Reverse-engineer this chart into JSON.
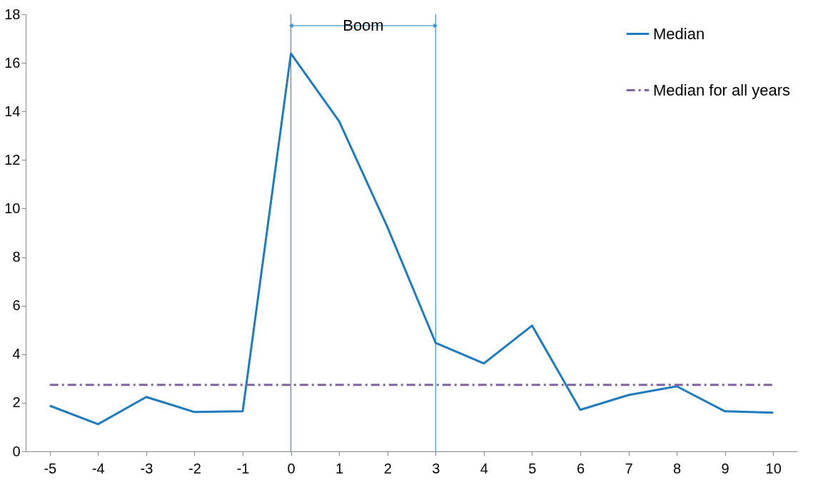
{
  "chart_data": {
    "type": "line",
    "categories": [
      "-5",
      "-4",
      "-3",
      "-2",
      "-1",
      "0",
      "1",
      "2",
      "3",
      "4",
      "5",
      "6",
      "7",
      "8",
      "9",
      "10"
    ],
    "series": [
      {
        "name": "Median",
        "color": "#1f7bbf",
        "values": [
          1.88,
          1.12,
          2.24,
          1.62,
          1.65,
          16.38,
          13.59,
          9.24,
          4.47,
          3.62,
          5.18,
          1.71,
          2.32,
          2.68,
          1.65,
          1.59
        ]
      },
      {
        "name": "Median for all years",
        "color": "#8064a2",
        "line_style": "dashed",
        "values": [
          2.74,
          2.74,
          2.74,
          2.74,
          2.74,
          2.74,
          2.74,
          2.74,
          2.74,
          2.74,
          2.74,
          2.74,
          2.74,
          2.74,
          2.74,
          2.74
        ]
      }
    ],
    "ref_lines": [
      {
        "axis": "x",
        "value": "0",
        "color": "#1f7bbf"
      },
      {
        "axis": "x",
        "value": "3",
        "color": "#1f7bbf"
      }
    ],
    "annotations": [
      "Boom"
    ],
    "ylim": [
      0,
      18
    ],
    "yticks": [
      0,
      2,
      4,
      6,
      8,
      10,
      12,
      14,
      16,
      18
    ],
    "grid": false,
    "legend": "top right",
    "marker": "none",
    "line_style": "solid"
  }
}
